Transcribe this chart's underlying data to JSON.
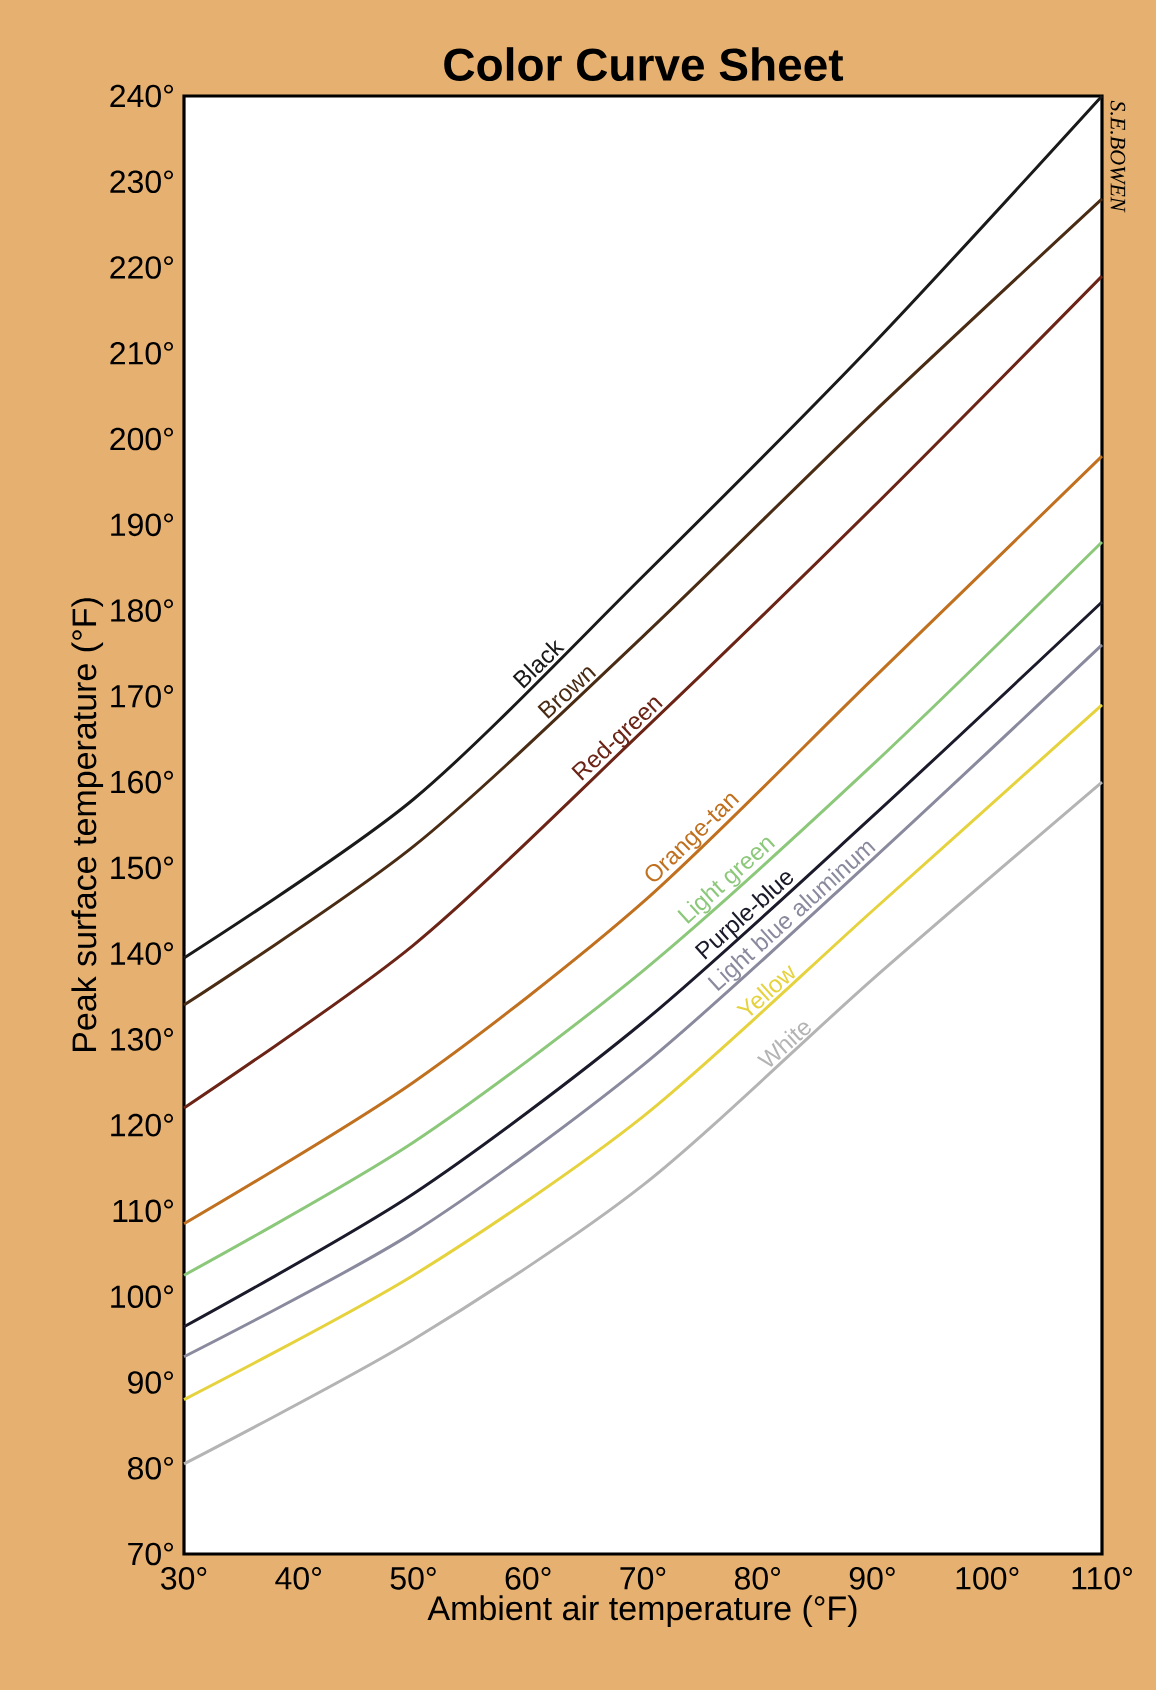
{
  "chart_data": {
    "type": "line",
    "title": "Color Curve Sheet",
    "xlabel": "Ambient air temperature  (°F)",
    "ylabel": "Peak surface temperature (°F)",
    "annotations": [
      "S.E.BOWEN"
    ],
    "x": [
      30,
      50,
      70,
      90,
      110
    ],
    "xlim": [
      30,
      110
    ],
    "ylim": [
      70,
      240
    ],
    "xticks": [
      {
        "value": 30,
        "label": "30°"
      },
      {
        "value": 40,
        "label": "40°"
      },
      {
        "value": 50,
        "label": "50°"
      },
      {
        "value": 60,
        "label": "60°"
      },
      {
        "value": 70,
        "label": "70°"
      },
      {
        "value": 80,
        "label": "80°"
      },
      {
        "value": 90,
        "label": "90°"
      },
      {
        "value": 100,
        "label": "100°"
      },
      {
        "value": 110,
        "label": "110°"
      }
    ],
    "yticks": [
      {
        "value": 70,
        "label": "70°"
      },
      {
        "value": 80,
        "label": "80°"
      },
      {
        "value": 90,
        "label": "90°"
      },
      {
        "value": 100,
        "label": "100°"
      },
      {
        "value": 110,
        "label": "110°"
      },
      {
        "value": 120,
        "label": "120°"
      },
      {
        "value": 130,
        "label": "130°"
      },
      {
        "value": 140,
        "label": "140°"
      },
      {
        "value": 150,
        "label": "150°"
      },
      {
        "value": 160,
        "label": "160°"
      },
      {
        "value": 170,
        "label": "170°"
      },
      {
        "value": 180,
        "label": "180°"
      },
      {
        "value": 190,
        "label": "190°"
      },
      {
        "value": 200,
        "label": "200°"
      },
      {
        "value": 210,
        "label": "210°"
      },
      {
        "value": 220,
        "label": "220°"
      },
      {
        "value": 230,
        "label": "230°"
      },
      {
        "value": 240,
        "label": "240°"
      }
    ],
    "series": [
      {
        "name": "Black",
        "color": "#1a1a1a",
        "values": [
          139.5,
          158,
          184,
          211,
          240
        ]
      },
      {
        "name": "Brown",
        "color": "#4a2c14",
        "values": [
          134,
          152.5,
          177,
          203,
          228
        ]
      },
      {
        "name": "Red-green",
        "color": "#6b2416",
        "values": [
          122,
          141,
          166,
          192,
          219
        ]
      },
      {
        "name": "Orange-tan",
        "color": "#c0701e",
        "values": [
          108.5,
          125,
          146,
          172,
          198
        ]
      },
      {
        "name": "Light green",
        "color": "#8cc87a",
        "values": [
          102.5,
          118,
          138,
          162,
          188
        ]
      },
      {
        "name": "Purple-blue",
        "color": "#1a1a2a",
        "values": [
          96.5,
          112,
          132,
          156,
          181
        ]
      },
      {
        "name": "Light blue aluminum",
        "color": "#8a8a9e",
        "values": [
          93,
          107.5,
          127,
          151,
          176
        ]
      },
      {
        "name": "Yellow",
        "color": "#e6d23c",
        "values": [
          88,
          102.5,
          121,
          145,
          169
        ]
      },
      {
        "name": "White",
        "color": "#b4b4b4",
        "values": [
          80.5,
          95,
          113,
          137,
          160
        ]
      }
    ]
  }
}
